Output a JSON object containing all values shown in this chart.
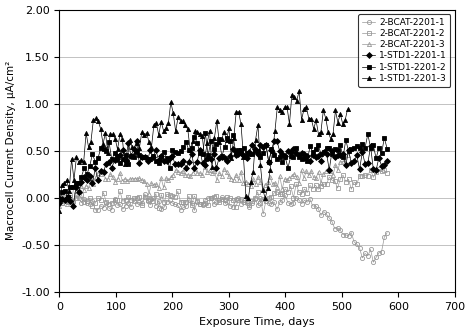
{
  "title": "",
  "xlabel": "Exposure Time, days",
  "ylabel": "Macrocell Current Density, μA/cm²",
  "xlim": [
    0,
    700
  ],
  "ylim": [
    -1.0,
    2.0
  ],
  "xticks": [
    0,
    100,
    200,
    300,
    400,
    500,
    600,
    700
  ],
  "yticks": [
    -1.0,
    -0.5,
    0.0,
    0.5,
    1.0,
    1.5,
    2.0
  ],
  "series": [
    {
      "label": "2-BCAT-2201-1",
      "color": "#999999",
      "marker": "o",
      "fillstyle": "none",
      "linewidth": 0.5,
      "markersize": 3,
      "seed": 42
    },
    {
      "label": "2-BCAT-2201-2",
      "color": "#999999",
      "marker": "s",
      "fillstyle": "none",
      "linewidth": 0.5,
      "markersize": 3,
      "seed": 43
    },
    {
      "label": "2-BCAT-2201-3",
      "color": "#999999",
      "marker": "^",
      "fillstyle": "none",
      "linewidth": 0.5,
      "markersize": 3,
      "seed": 44
    },
    {
      "label": "1-STD1-2201-1",
      "color": "#000000",
      "marker": "D",
      "fillstyle": "full",
      "linewidth": 0.5,
      "markersize": 3,
      "seed": 45
    },
    {
      "label": "1-STD1-2201-2",
      "color": "#000000",
      "marker": "s",
      "fillstyle": "full",
      "linewidth": 0.5,
      "markersize": 3,
      "seed": 46
    },
    {
      "label": "1-STD1-2201-3",
      "color": "#000000",
      "marker": "^",
      "fillstyle": "full",
      "linewidth": 0.5,
      "markersize": 3,
      "seed": 47
    }
  ]
}
